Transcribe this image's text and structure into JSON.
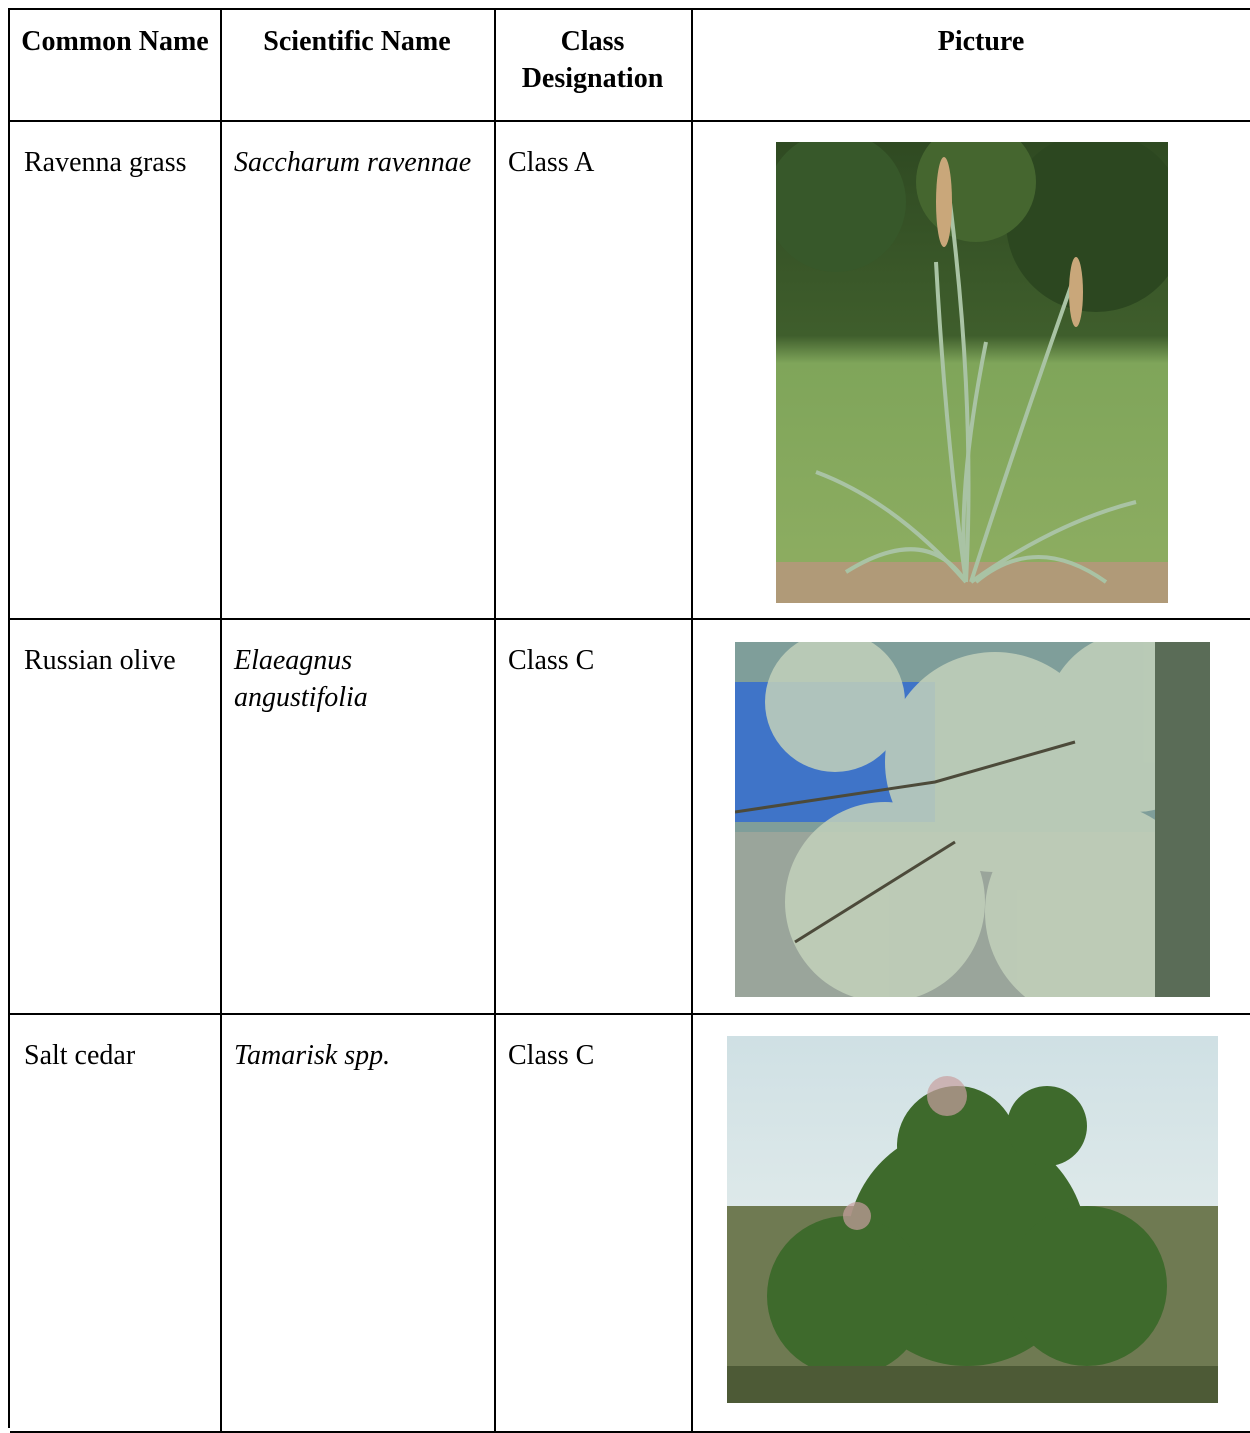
{
  "table": {
    "header": [
      "Common Name",
      "Scientific Name",
      "Class Designation",
      "Picture"
    ],
    "rows": [
      [
        "Ravenna grass",
        "Saccharum ravennae",
        "Class A"
      ],
      [
        "Russian olive",
        "Elaeagnus angustifolia",
        "Class C"
      ],
      [
        "Salt cedar",
        "Tamarisk spp.",
        "Class C"
      ]
    ]
  }
}
